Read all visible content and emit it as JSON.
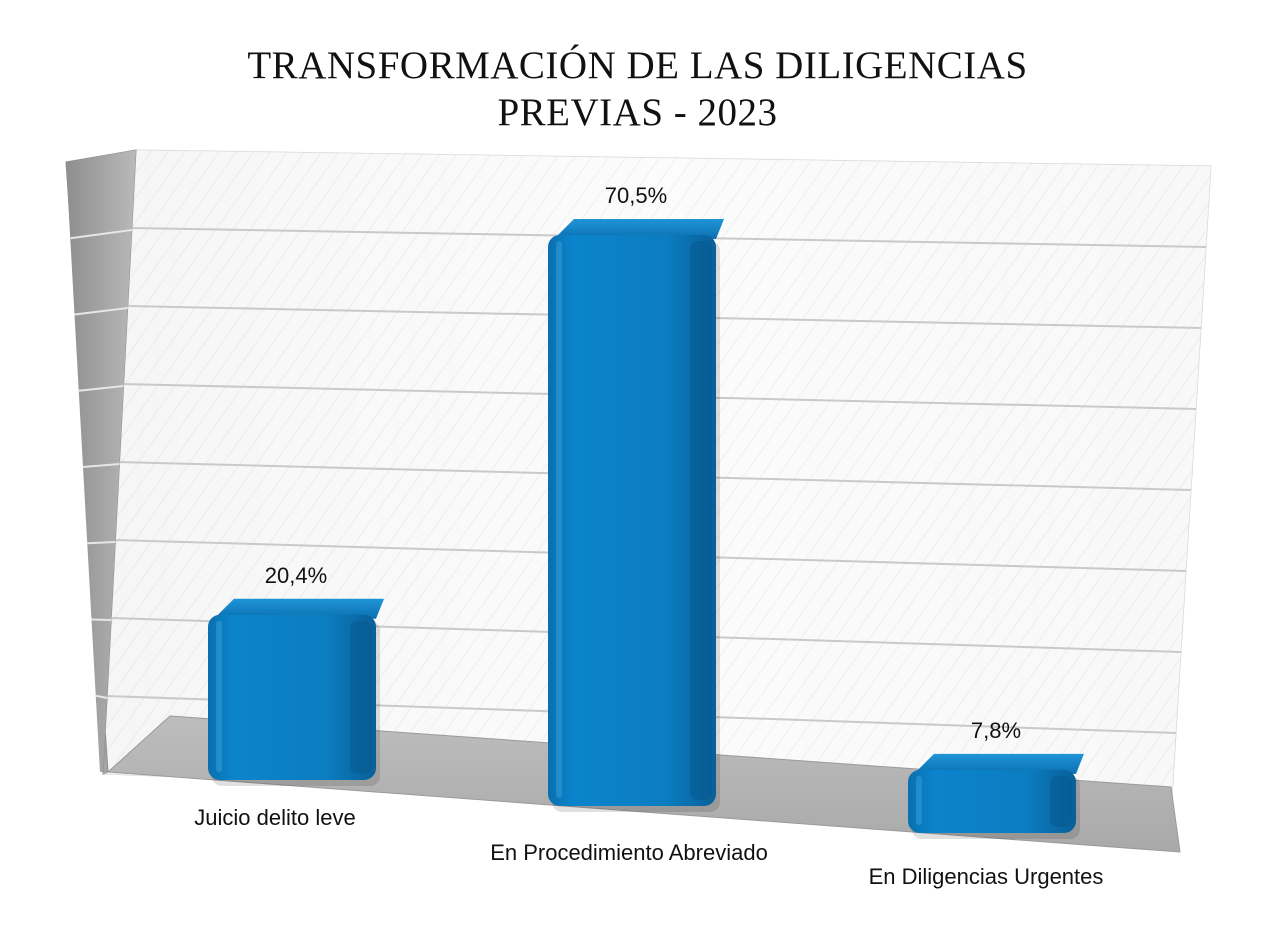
{
  "chart_data": {
    "type": "bar",
    "title_lines": [
      "TRANSFORMACIÓN DE LAS DILIGENCIAS",
      "PREVIAS - 2023"
    ],
    "categories": [
      "Juicio delito leve",
      "En Procedimiento Abreviado",
      "En Diligencias Urgentes"
    ],
    "values": [
      20.4,
      70.5,
      7.8
    ],
    "data_labels": [
      "20,4%",
      "70,5%",
      "7,8%"
    ],
    "unit": "%",
    "ylim": [
      0,
      80
    ],
    "gridlines": 8,
    "grid": true,
    "legend": "none",
    "bar_color": "#0b7dc1"
  }
}
